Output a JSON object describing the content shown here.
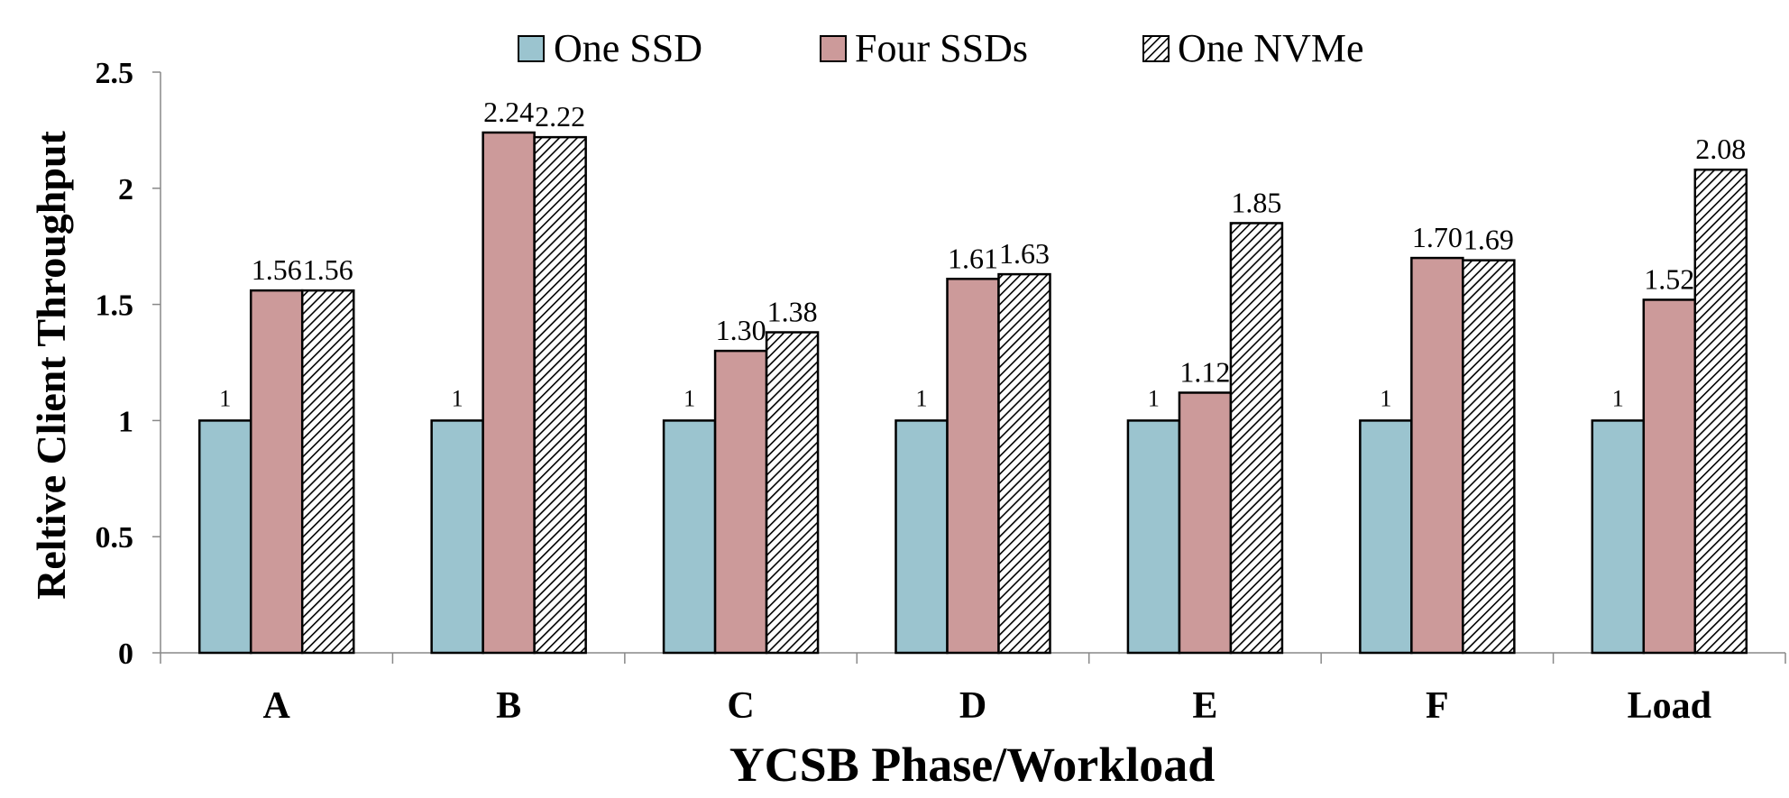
{
  "chart_data": {
    "type": "bar",
    "categories": [
      "A",
      "B",
      "C",
      "D",
      "E",
      "F",
      "Load"
    ],
    "series": [
      {
        "name": "One SSD",
        "values": [
          1,
          1,
          1,
          1,
          1,
          1,
          1
        ],
        "labels": [
          "1",
          "1",
          "1",
          "1",
          "1",
          "1",
          "1"
        ],
        "color": "#9bc4cf",
        "pattern": "solid"
      },
      {
        "name": "Four SSDs",
        "values": [
          1.56,
          2.24,
          1.3,
          1.61,
          1.12,
          1.7,
          1.52
        ],
        "labels": [
          "1.56",
          "2.24",
          "1.30",
          "1.61",
          "1.12",
          "1.70",
          "1.52"
        ],
        "color": "#cc9a9a",
        "pattern": "solid"
      },
      {
        "name": "One NVMe",
        "values": [
          1.56,
          2.22,
          1.38,
          1.63,
          1.85,
          1.69,
          2.08
        ],
        "labels": [
          "1.56",
          "2.22",
          "1.38",
          "1.63",
          "1.85",
          "1.69",
          "2.08"
        ],
        "color": "#000000",
        "pattern": "diagonal-hatch"
      }
    ],
    "xlabel": "YCSB Phase/Workload",
    "ylabel": "Reltive Client Throughput",
    "ylim": [
      0,
      2.5
    ],
    "yticks": [
      0,
      0.5,
      1,
      1.5,
      2,
      2.5
    ],
    "ytick_labels": [
      "0",
      "0.5",
      "1",
      "1.5",
      "2",
      "2.5"
    ],
    "grid": false,
    "legend_position": "top"
  }
}
